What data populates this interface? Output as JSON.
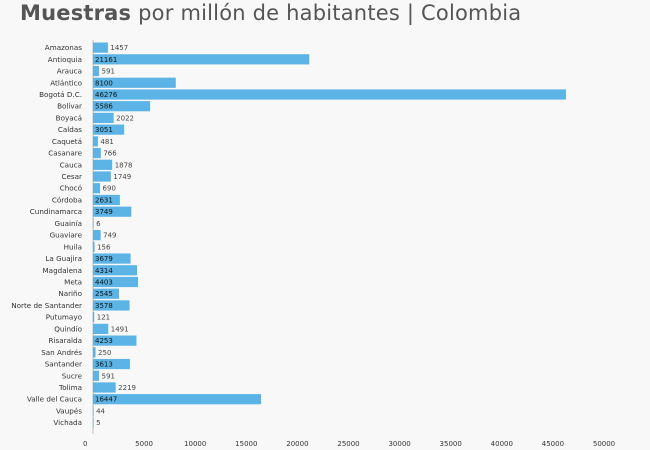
{
  "title": {
    "bold": "Muestras",
    "rest": "por millón de habitantes | Colombia"
  },
  "colors": {
    "bar": "#5bb4e5",
    "label_inside": "#111111",
    "label_outside": "#444444",
    "axis": "#999999",
    "background": "#f8f8f8"
  },
  "chart_data": {
    "type": "bar",
    "orientation": "horizontal",
    "title": "Muestras por millón de habitantes | Colombia",
    "xlabel": "",
    "ylabel": "",
    "xlim": [
      0,
      50000
    ],
    "xticks": [
      0,
      5000,
      10000,
      15000,
      20000,
      25000,
      30000,
      35000,
      40000,
      45000,
      50000
    ],
    "categories": [
      "Amazonas",
      "Antioquia",
      "Arauca",
      "Atlántico",
      "Bogotá D.C.",
      "Bolívar",
      "Boyacá",
      "Caldas",
      "Caquetá",
      "Casanare",
      "Cauca",
      "Cesar",
      "Chocó",
      "Córdoba",
      "Cundinamarca",
      "Guainía",
      "Guaviare",
      "Huila",
      "La Guajira",
      "Magdalena",
      "Meta",
      "Nariño",
      "Norte de Santander",
      "Putumayo",
      "Quindío",
      "Risaralda",
      "San Andrés",
      "Santander",
      "Sucre",
      "Tolima",
      "Valle del Cauca",
      "Vaupés",
      "Vichada"
    ],
    "values": [
      1457,
      21161,
      591,
      8100,
      46276,
      5586,
      2022,
      3051,
      481,
      766,
      1878,
      1749,
      690,
      2631,
      3749,
      6,
      749,
      156,
      3679,
      4314,
      4403,
      2545,
      3578,
      121,
      1491,
      4253,
      250,
      3613,
      591,
      2219,
      16447,
      44,
      5
    ]
  }
}
